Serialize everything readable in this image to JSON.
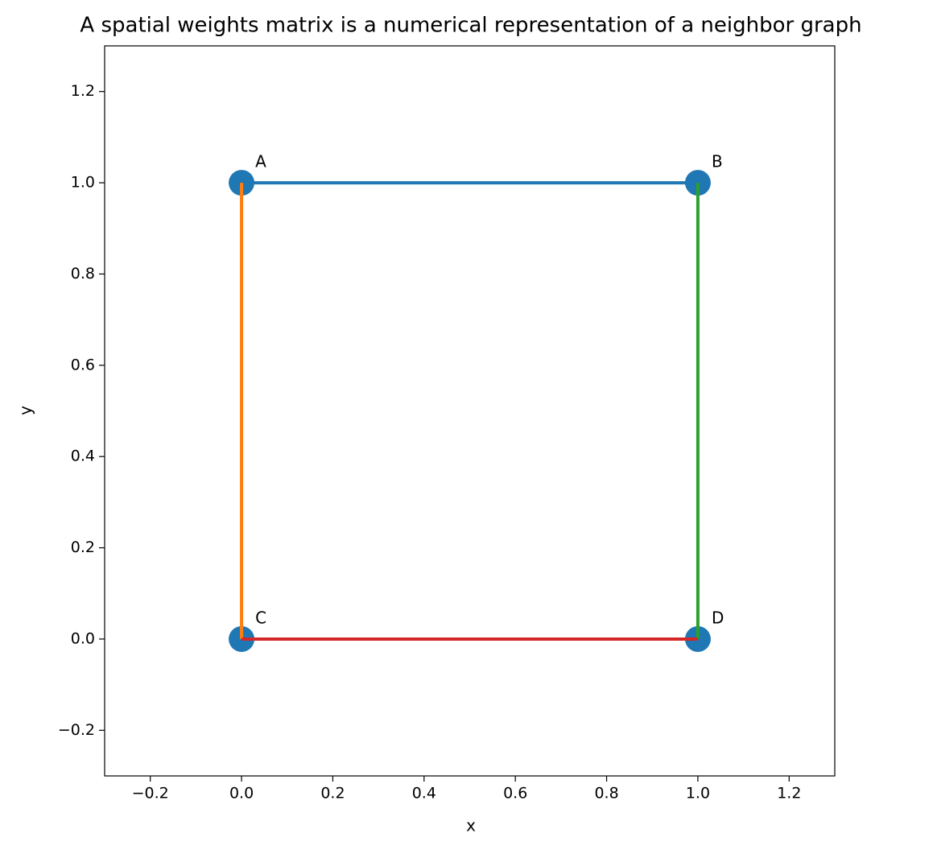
{
  "chart_data": {
    "type": "graph",
    "title": "A spatial weights matrix is a numerical representation of a neighbor graph",
    "xlabel": "x",
    "ylabel": "y",
    "xlim": [
      -0.3,
      1.3
    ],
    "ylim": [
      -0.3,
      1.3
    ],
    "xticks": [
      {
        "value": -0.2,
        "label": "−0.2"
      },
      {
        "value": 0,
        "label": "0.0"
      },
      0.2,
      0.4,
      0.6,
      0.8,
      {
        "value": 1,
        "label": "1.0"
      },
      1.2
    ],
    "yticks": [
      {
        "value": -0.2,
        "label": "−0.2"
      },
      {
        "value": 0,
        "label": "0.0"
      },
      0.2,
      0.4,
      0.6,
      0.8,
      {
        "value": 1,
        "label": "1.0"
      },
      1.2
    ],
    "points": {
      "labels": [
        "A",
        "B",
        "C",
        "D"
      ],
      "x": [
        0,
        1,
        0,
        1
      ],
      "y": [
        1,
        1,
        0,
        0
      ],
      "color": "#1f77b4"
    },
    "edges": [
      {
        "color": "#1f77b4",
        "x": [
          0,
          1
        ],
        "y": [
          1,
          1
        ]
      },
      {
        "color": "#ff7f0e",
        "x": [
          0,
          0
        ],
        "y": [
          1,
          0
        ]
      },
      {
        "color": "#2ca02c",
        "x": [
          1,
          1
        ],
        "y": [
          1,
          0
        ]
      },
      {
        "color": "#d62728",
        "x": [
          0,
          1
        ],
        "y": [
          0,
          0
        ]
      }
    ]
  }
}
